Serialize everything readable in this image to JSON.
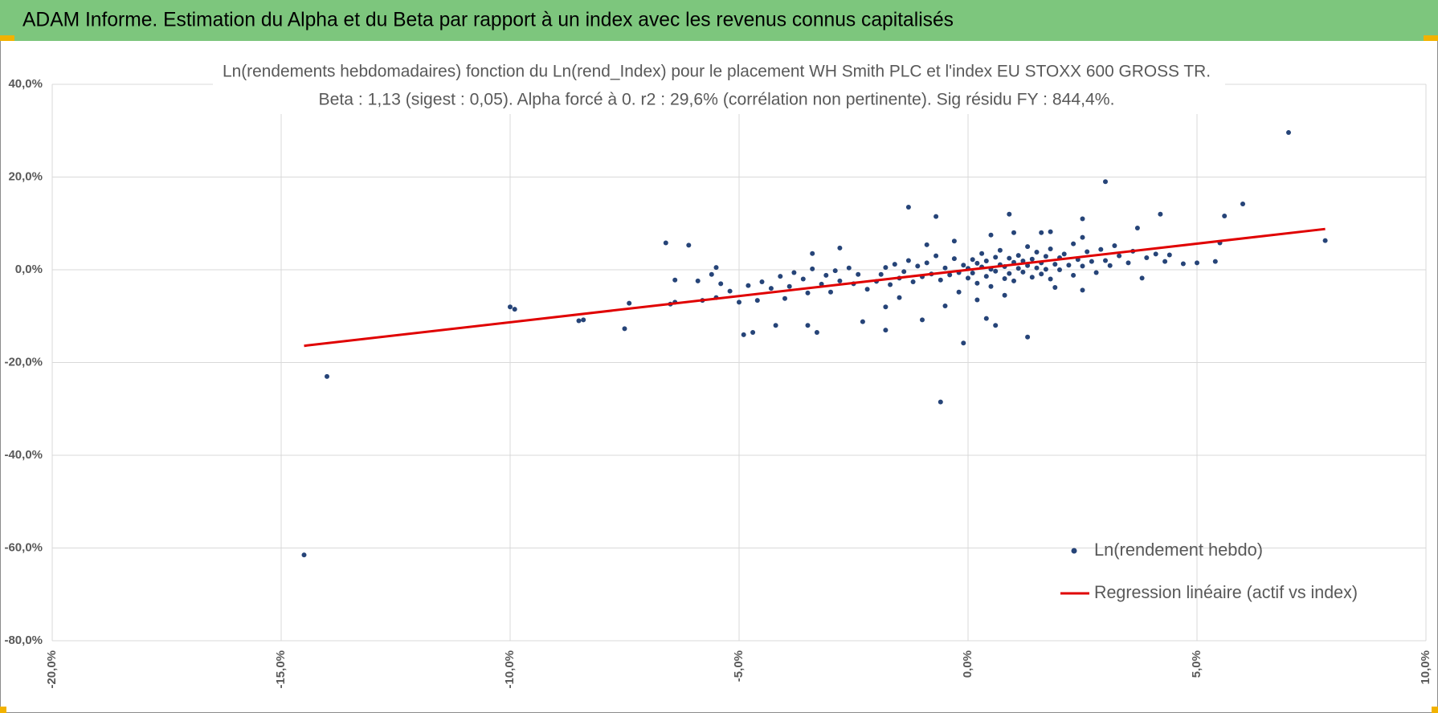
{
  "header": {
    "title": "ADAM Informe. Estimation du Alpha et du Beta par rapport à un index avec les revenus connus capitalisés"
  },
  "chart_data": {
    "type": "scatter",
    "title": "Ln(rendements hebdomadaires) fonction du Ln(rend_Index) pour le placement WH Smith PLC et l'index EU STOXX 600 GROSS TR.",
    "subtitle": "Beta : 1,13 (sigest : 0,05).  Alpha forcé à 0. r2 : 29,6% (corrélation non pertinente). Sig résidu FY : 844,4%.",
    "xlim": [
      -20,
      10
    ],
    "ylim": [
      -80,
      40
    ],
    "xticks": [
      {
        "value": -20,
        "label": "-20,0%"
      },
      {
        "value": -15,
        "label": "-15,0%"
      },
      {
        "value": -10,
        "label": "-10,0%"
      },
      {
        "value": -5,
        "label": "-5,0%"
      },
      {
        "value": 0,
        "label": "0,0%"
      },
      {
        "value": 5,
        "label": "5,0%"
      },
      {
        "value": 10,
        "label": "10,0%"
      }
    ],
    "yticks": [
      {
        "value": -80,
        "label": "-80,0%"
      },
      {
        "value": -60,
        "label": "-60,0%"
      },
      {
        "value": -40,
        "label": "-40,0%"
      },
      {
        "value": -20,
        "label": "-20,0%"
      },
      {
        "value": 0,
        "label": "0,0%"
      },
      {
        "value": 20,
        "label": "20,0%"
      },
      {
        "value": 40,
        "label": "40,0%"
      }
    ],
    "grid": true,
    "legend": "bottom-right",
    "series": [
      {
        "name": "Ln(rendement hebdo)",
        "color": "#264478",
        "type": "scatter",
        "x": [
          -14.5,
          -14,
          -10,
          -9.9,
          -8.5,
          -8.4,
          -7.5,
          -7.4,
          -6.6,
          -6.4,
          -6.1,
          -6.4,
          -5.6,
          -5.5,
          -5,
          -4.9,
          -4.7,
          -4.2,
          -3.5,
          -3.4,
          -3.3,
          -2.8,
          -2.3,
          -1.8,
          -1.3,
          -1.8,
          -0.7,
          -0.6,
          -0.1,
          0.6,
          1.3,
          0.9,
          1.6,
          3,
          2.5,
          3.7,
          4.2,
          5.6,
          6,
          7,
          7.8,
          5,
          5.4,
          5.5,
          4.7,
          4.4,
          3.8,
          2.5,
          -2.0,
          -1.9,
          -1.8,
          -1.7,
          -1.6,
          -1.5,
          -1.4,
          -1.3,
          -1.2,
          -1.1,
          -1.0,
          -0.9,
          -0.8,
          -0.7,
          -0.6,
          -0.5,
          -0.4,
          -0.3,
          -0.2,
          -0.1,
          0.0,
          0.0,
          0.1,
          0.1,
          0.2,
          0.2,
          0.3,
          0.3,
          0.4,
          0.4,
          0.5,
          0.5,
          0.6,
          0.6,
          0.7,
          0.7,
          0.8,
          0.8,
          0.9,
          0.9,
          1.0,
          1.0,
          1.1,
          1.1,
          1.2,
          1.2,
          1.3,
          1.3,
          1.4,
          1.4,
          1.5,
          1.5,
          1.6,
          1.6,
          1.7,
          1.7,
          1.8,
          1.8,
          1.9,
          2.0,
          2.0,
          2.1,
          2.2,
          2.3,
          2.3,
          2.4,
          2.5,
          2.6,
          2.7,
          2.8,
          2.9,
          3.0,
          3.1,
          3.2,
          3.3,
          3.5,
          3.6,
          3.9,
          4.1,
          4.3,
          -2.2,
          -2.4,
          -2.5,
          -2.6,
          -2.8,
          -2.9,
          -3.0,
          -3.1,
          -3.2,
          -3.4,
          -3.5,
          -3.6,
          -3.8,
          -3.9,
          -4.0,
          -4.1,
          -4.3,
          -4.5,
          -4.6,
          -4.8,
          -5.2,
          -5.4,
          -5.5,
          -5.8,
          -5.9,
          -6.5,
          -0.3,
          0.5,
          1.0,
          -0.9,
          0.2,
          -0.5,
          0.8,
          -1.5,
          1.9,
          2.5,
          -1.0,
          0.4,
          1.8,
          -0.2
        ],
        "values": [
          -61.5,
          -23,
          -8,
          -8.5,
          -11,
          -10.8,
          -12.7,
          -7.2,
          5.8,
          -2.2,
          5.3,
          -7,
          -1,
          0.5,
          -7,
          -14,
          -13.5,
          -12,
          -12,
          3.5,
          -13.5,
          4.7,
          -11.2,
          -13,
          13.5,
          -8,
          11.5,
          -28.5,
          -15.8,
          -12,
          -14.5,
          12,
          8,
          19,
          11,
          9,
          12,
          11.6,
          14.2,
          29.6,
          6.3,
          1.5,
          1.8,
          5.8,
          1.3,
          3.2,
          -1.8,
          -4.4,
          -2.5,
          -1.0,
          0.5,
          -3.2,
          1.2,
          -1.8,
          -0.4,
          2.0,
          -2.6,
          0.8,
          -1.5,
          1.5,
          -0.9,
          3.0,
          -2.2,
          0.4,
          -1.1,
          2.4,
          -0.6,
          1.0,
          -1.8,
          0.3,
          2.2,
          -0.7,
          1.4,
          -2.9,
          0.6,
          3.5,
          -1.4,
          1.9,
          0.1,
          -3.6,
          2.7,
          -0.3,
          1.1,
          4.2,
          -1.9,
          0.7,
          2.5,
          -0.8,
          1.6,
          -2.4,
          0.3,
          3.1,
          -0.5,
          1.9,
          5.0,
          0.9,
          -1.6,
          2.3,
          0.4,
          3.8,
          -0.9,
          1.5,
          2.9,
          0.1,
          4.5,
          -2.0,
          1.2,
          2.6,
          0.0,
          3.4,
          1.0,
          5.6,
          -1.2,
          2.2,
          0.8,
          3.9,
          1.8,
          -0.6,
          4.4,
          2.0,
          0.9,
          5.2,
          3.0,
          1.5,
          4.0,
          2.6,
          3.4,
          1.8,
          -4.2,
          -1.0,
          -3.0,
          0.4,
          -2.4,
          -0.2,
          -4.8,
          -1.2,
          -3.1,
          0.2,
          -5.0,
          -2.0,
          -0.6,
          -3.6,
          -6.2,
          -1.4,
          -4.0,
          -2.6,
          -6.6,
          -3.4,
          -4.6,
          -3.0,
          -6.0,
          -6.6,
          -2.4,
          -7.4,
          6.2,
          7.5,
          8.0,
          5.4,
          -6.5,
          -7.8,
          -5.5,
          -6.0,
          -3.8,
          7.0,
          -10.8,
          -10.5,
          8.2,
          -4.8
        ]
      },
      {
        "name": "Regression linéaire (actif vs index)",
        "color": "#e00000",
        "type": "line",
        "x": [
          -14.5,
          7.8
        ],
        "values": [
          -16.4,
          8.8
        ]
      }
    ]
  }
}
